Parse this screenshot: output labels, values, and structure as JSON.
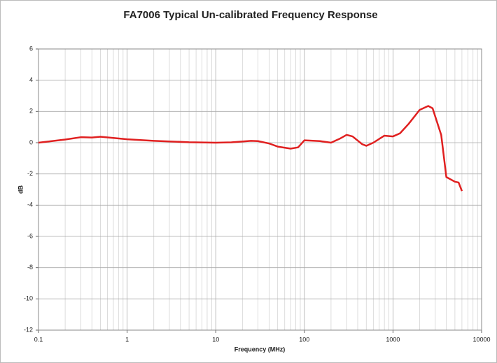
{
  "chart_data": {
    "type": "line",
    "title": "FA7006 Typical Un-calibrated Frequency Response",
    "x_label": "Frequency (MHz)",
    "y_label": "dB",
    "log_x": true,
    "grid": true,
    "xlim": [
      0.1,
      10000
    ],
    "xticks": [
      0.1,
      1,
      10,
      100,
      1000,
      10000
    ],
    "ylim": [
      -12,
      6
    ],
    "yticks": [
      -12,
      -10,
      -8,
      -6,
      -4,
      -2,
      0,
      2,
      4,
      6
    ],
    "x": [
      0.1,
      0.2,
      0.3,
      0.4,
      0.5,
      0.7,
      1,
      2,
      5,
      10,
      15,
      25,
      30,
      40,
      50,
      70,
      85,
      100,
      150,
      200,
      250,
      300,
      350,
      450,
      500,
      600,
      800,
      1000,
      1200,
      1500,
      2000,
      2500,
      2800,
      3500,
      4000,
      5000,
      5500,
      6000
    ],
    "series": [
      {
        "name": "FA7006",
        "color": "#e02020",
        "values": [
          0,
          0.2,
          0.35,
          0.33,
          0.38,
          0.3,
          0.22,
          0.12,
          0.03,
          0,
          0.02,
          0.12,
          0.1,
          -0.05,
          -0.25,
          -0.38,
          -0.3,
          0.15,
          0.1,
          0,
          0.25,
          0.5,
          0.4,
          -0.1,
          -0.2,
          0,
          0.45,
          0.4,
          0.6,
          1.2,
          2.1,
          2.35,
          2.2,
          0.5,
          -2.2,
          -2.5,
          -2.55,
          -3.1
        ]
      }
    ]
  }
}
